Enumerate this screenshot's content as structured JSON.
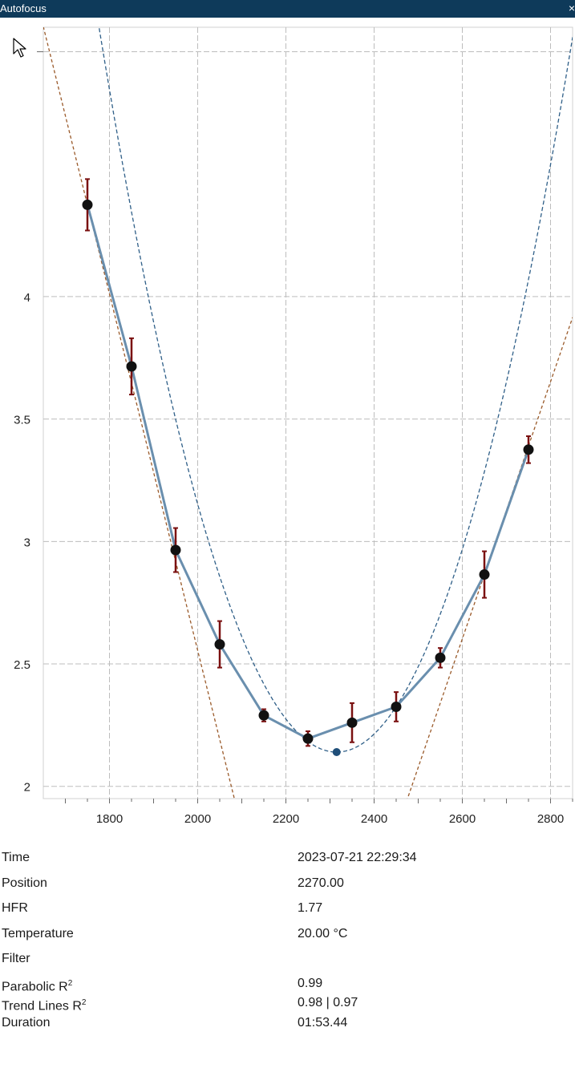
{
  "window": {
    "title": "Autofocus",
    "close_glyph": "×",
    "title_bar_color": "#0e3a5a"
  },
  "chart_data": {
    "type": "scatter",
    "xlim": [
      1650,
      2850
    ],
    "ylim": [
      1.95,
      5.1
    ],
    "x_ticks": [
      1800,
      2000,
      2200,
      2400,
      2600,
      2800
    ],
    "y_ticks": [
      2,
      2.5,
      3,
      3.5,
      4
    ],
    "x_tick_labels": [
      "1800",
      "2000",
      "2200",
      "2400",
      "2600",
      "2800"
    ],
    "y_tick_labels": [
      "2",
      "2.5",
      "3",
      "3.5",
      "4"
    ],
    "grid": true,
    "points": [
      {
        "x": 1750,
        "y": 4.375,
        "err": 0.105
      },
      {
        "x": 1850,
        "y": 3.715,
        "err": 0.115
      },
      {
        "x": 1950,
        "y": 2.965,
        "err": 0.09
      },
      {
        "x": 2050,
        "y": 2.58,
        "err": 0.095
      },
      {
        "x": 2150,
        "y": 2.29,
        "err": 0.025
      },
      {
        "x": 2250,
        "y": 2.195,
        "err": 0.03
      },
      {
        "x": 2350,
        "y": 2.26,
        "err": 0.08
      },
      {
        "x": 2450,
        "y": 2.325,
        "err": 0.06
      },
      {
        "x": 2550,
        "y": 2.525,
        "err": 0.04
      },
      {
        "x": 2650,
        "y": 2.865,
        "err": 0.095
      },
      {
        "x": 2750,
        "y": 3.375,
        "err": 0.055
      }
    ],
    "parabola": {
      "vertex_x": 2315,
      "vertex_y": 2.14,
      "a": 1.02e-05
    },
    "trend_left": {
      "slope": -0.00728,
      "intercept": 4.375,
      "x0": 1750
    },
    "trend_right": {
      "slope": 0.00525,
      "intercept": 2.865,
      "x0": 2650
    },
    "focus_point": {
      "x": 2315,
      "y": 2.14
    },
    "colors": {
      "points": "#111111",
      "error_bars": "#7a1010",
      "connecting_line": "#6a8fae",
      "parabola": "#2f5f88",
      "trend_lines": "#9a5a2a",
      "focus_point": "#1f4e79",
      "grid": "#bdbdbd",
      "axis_text": "#222222"
    }
  },
  "info": [
    {
      "label": "Time",
      "value": "2023-07-21 22:29:34"
    },
    {
      "label": "Position",
      "value": "2270.00"
    },
    {
      "label": "HFR",
      "value": "1.77"
    },
    {
      "label": "Temperature",
      "value": "20.00 °C"
    },
    {
      "label": "Filter",
      "value": ""
    },
    {
      "label": "Parabolic R",
      "sup": "2",
      "value": "0.99"
    },
    {
      "label": "Trend Lines R",
      "sup": "2",
      "value": "0.98 | 0.97"
    },
    {
      "label": "Duration",
      "value": "01:53.44"
    }
  ]
}
